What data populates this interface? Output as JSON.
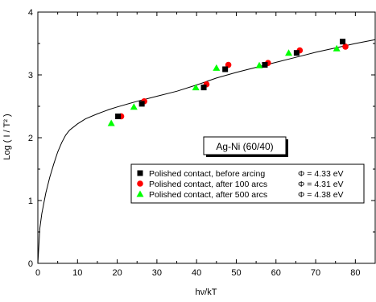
{
  "chart_data": {
    "type": "scatter",
    "xlabel": "hν/kT",
    "ylabel": "Log ( I / T² )",
    "xlim": [
      0,
      85
    ],
    "ylim": [
      0,
      4
    ],
    "x_ticks": [
      "0",
      "10",
      "20",
      "30",
      "40",
      "50",
      "60",
      "70",
      "80"
    ],
    "y_ticks": [
      "0",
      "1",
      "2",
      "3",
      "4"
    ],
    "x_tick_values": [
      0,
      10,
      20,
      30,
      40,
      50,
      60,
      70,
      80
    ],
    "y_tick_values": [
      0,
      1,
      2,
      3,
      4
    ],
    "grid": false,
    "annotation": "Ag-Ni (60/40)",
    "legend_position": "center-right",
    "series": [
      {
        "name": "Polished contact, before arcing",
        "phi": "Φ = 4.33 eV",
        "marker": "square",
        "color": "#000000",
        "points": [
          [
            20.2,
            2.34
          ],
          [
            26.2,
            2.54
          ],
          [
            41.8,
            2.8
          ],
          [
            47.2,
            3.09
          ],
          [
            57.2,
            3.16
          ],
          [
            65.2,
            3.35
          ],
          [
            76.8,
            3.53
          ]
        ]
      },
      {
        "name": "Polished contact, after 100 arcs",
        "phi": "Φ = 4.31 eV",
        "marker": "circle",
        "color": "#ff0000",
        "points": [
          [
            21.0,
            2.34
          ],
          [
            26.8,
            2.58
          ],
          [
            42.5,
            2.85
          ],
          [
            48.0,
            3.16
          ],
          [
            58.0,
            3.19
          ],
          [
            66.0,
            3.39
          ],
          [
            77.5,
            3.45
          ]
        ]
      },
      {
        "name": "Polished contact, after 500 arcs",
        "phi": "Φ = 4.38 eV",
        "marker": "triangle",
        "color": "#00ff00",
        "points": [
          [
            18.5,
            2.23
          ],
          [
            24.2,
            2.49
          ],
          [
            39.8,
            2.8
          ],
          [
            45.0,
            3.11
          ],
          [
            55.8,
            3.15
          ],
          [
            63.2,
            3.35
          ],
          [
            75.3,
            3.42
          ]
        ]
      }
    ],
    "fit_curve": {
      "description_hidden": true,
      "points": [
        [
          0,
          0
        ],
        [
          0.5,
          0.56
        ],
        [
          1,
          0.79
        ],
        [
          2,
          1.12
        ],
        [
          3,
          1.37
        ],
        [
          4,
          1.58
        ],
        [
          5,
          1.77
        ],
        [
          6,
          1.92
        ],
        [
          7,
          2.04
        ],
        [
          8,
          2.12
        ],
        [
          10,
          2.22
        ],
        [
          12,
          2.3
        ],
        [
          15,
          2.38
        ],
        [
          18,
          2.45
        ],
        [
          20,
          2.49
        ],
        [
          25,
          2.58
        ],
        [
          30,
          2.66
        ],
        [
          35,
          2.74
        ],
        [
          40,
          2.84
        ],
        [
          45,
          2.95
        ],
        [
          50,
          3.04
        ],
        [
          55,
          3.12
        ],
        [
          60,
          3.2
        ],
        [
          65,
          3.28
        ],
        [
          70,
          3.36
        ],
        [
          75,
          3.43
        ],
        [
          80,
          3.5
        ],
        [
          85,
          3.56
        ]
      ]
    }
  }
}
